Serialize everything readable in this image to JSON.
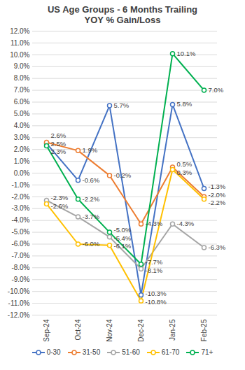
{
  "chart_data": {
    "type": "line",
    "title": "US Age Groups - 6 Months Trailing",
    "subtitle": "YOY % Gain/Loss",
    "categories": [
      "Sep-24",
      "Oct-24",
      "Nov-24",
      "Dec-24",
      "Jan-25",
      "Feb-25"
    ],
    "series": [
      {
        "name": "0-30",
        "color": "#4472C4",
        "values": [
          2.5,
          -0.6,
          5.7,
          -10.3,
          5.8,
          -1.3
        ],
        "value_labels": [
          "2.5%",
          "-0.6%",
          "5.7%",
          "-10.3%",
          "5.8%",
          "-1.3%"
        ]
      },
      {
        "name": "31-50",
        "color": "#ED7D31",
        "values": [
          2.6,
          1.9,
          -0.2,
          -4.3,
          0.5,
          -2.0
        ],
        "value_labels": [
          "2.6%",
          "1.9%",
          "-0.2%",
          "-4.3%",
          "0.5%",
          "-2.0%"
        ]
      },
      {
        "name": "51-60",
        "color": "#A5A5A5",
        "values": [
          -2.3,
          -3.7,
          -5.4,
          -8.1,
          -4.3,
          -6.3
        ],
        "value_labels": [
          "-2.3%",
          "-3.7%",
          "-5.4%",
          "-8.1%",
          "-4.3%",
          "-6.3%"
        ]
      },
      {
        "name": "61-70",
        "color": "#FFC000",
        "values": [
          -2.6,
          -6.0,
          -6.1,
          -10.8,
          0.3,
          -2.2
        ],
        "value_labels": [
          "-2.6%",
          "-6.0%",
          "-6.1%",
          "-10.8%",
          "0.3%",
          "-2.2%"
        ]
      },
      {
        "name": "71+",
        "color": "#00B050",
        "values": [
          2.3,
          -2.2,
          -5.0,
          -7.7,
          10.1,
          7.0
        ],
        "value_labels": [
          "2.3%",
          "-2.2%",
          "-5.0%",
          "-7.7%",
          "10.1%",
          "7.0%"
        ]
      }
    ],
    "ylim": [
      -12,
      12
    ],
    "yticks": [
      {
        "value": -12,
        "label": "-12.0%"
      },
      {
        "value": -11,
        "label": "-11.0%"
      },
      {
        "value": -10,
        "label": "-10.0%"
      },
      {
        "value": -9,
        "label": "-9.0%"
      },
      {
        "value": -8,
        "label": "-8.0%"
      },
      {
        "value": -7,
        "label": "-7.0%"
      },
      {
        "value": -6,
        "label": "-6.0%"
      },
      {
        "value": -5,
        "label": "-5.0%"
      },
      {
        "value": -4,
        "label": "-4.0%"
      },
      {
        "value": -3,
        "label": "-3.0%"
      },
      {
        "value": -2,
        "label": "-2.0%"
      },
      {
        "value": -1,
        "label": "-1.0%"
      },
      {
        "value": 0,
        "label": "0.0%"
      },
      {
        "value": 1,
        "label": "1.0%"
      },
      {
        "value": 2,
        "label": "2.0%"
      },
      {
        "value": 3,
        "label": "3.0%"
      },
      {
        "value": 4,
        "label": "4.0%"
      },
      {
        "value": 5,
        "label": "5.0%"
      },
      {
        "value": 6,
        "label": "6.0%"
      },
      {
        "value": 7,
        "label": "7.0%"
      },
      {
        "value": 8,
        "label": "8.0%"
      },
      {
        "value": 9,
        "label": "9.0%"
      },
      {
        "value": 10,
        "label": "10.0%"
      },
      {
        "value": 11,
        "label": "11.0%"
      },
      {
        "value": 12,
        "label": "12.0%"
      }
    ],
    "grid": true,
    "legend": "bottom",
    "data_labels": true,
    "marker": "circle"
  }
}
